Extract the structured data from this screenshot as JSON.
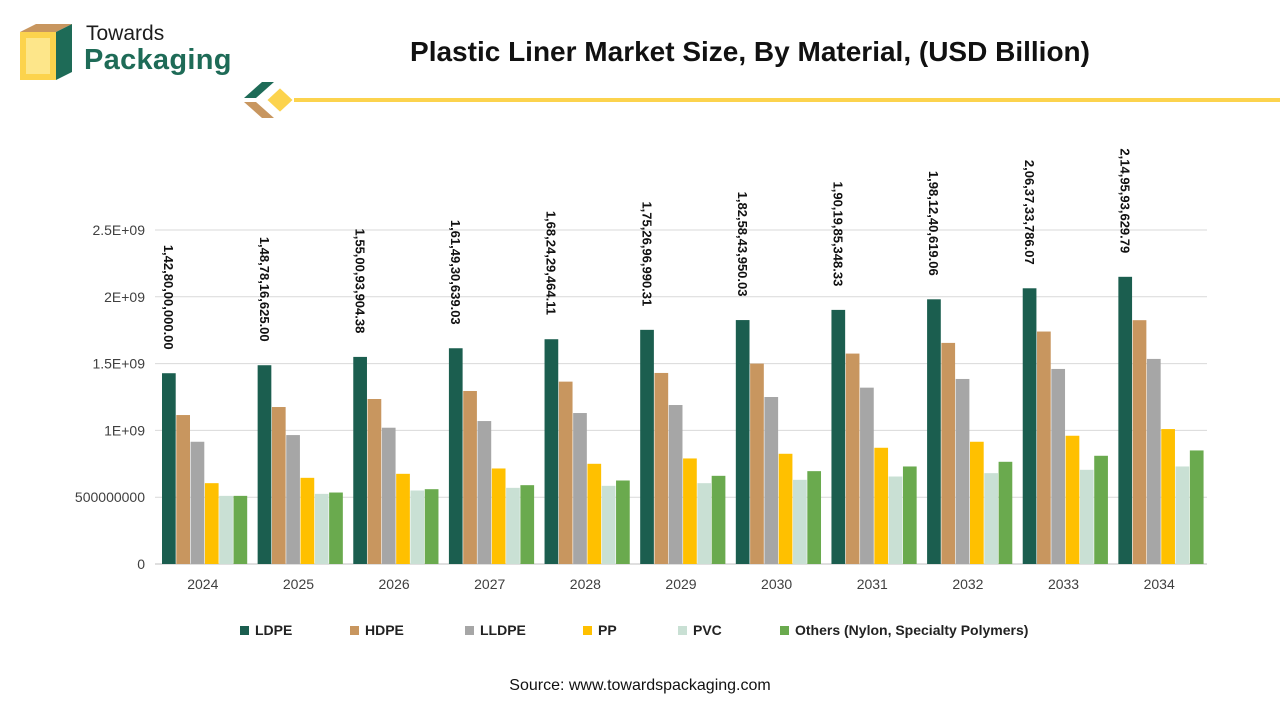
{
  "brand": {
    "line1": "Towards",
    "line2": "Packaging",
    "colors": {
      "green": "#1e6b57",
      "tan": "#c8965f",
      "yellow": "#fcd34d"
    }
  },
  "source": "Source: www.towardspackaging.com",
  "chart_data": {
    "type": "bar",
    "title": "Plastic Liner Market Size, By Material, (USD Billion)",
    "categories": [
      "2024",
      "2025",
      "2026",
      "2027",
      "2028",
      "2029",
      "2030",
      "2031",
      "2032",
      "2033",
      "2034"
    ],
    "ylim": [
      0,
      2500000000
    ],
    "yticks": [
      0,
      500000000,
      1000000000,
      1500000000,
      2000000000,
      2500000000
    ],
    "ytick_labels": [
      "0",
      "500000000",
      "1E+09",
      "1.5E+09",
      "2E+09",
      "2.5E+09"
    ],
    "grid": true,
    "legend_position": "bottom",
    "series": [
      {
        "name": "LDPE",
        "color": "#1b5e4f",
        "values": [
          1428000000,
          1487816625,
          1550093904.38,
          1614930639.03,
          1682429464.11,
          1752696990.31,
          1825843950.03,
          1901985348.33,
          1981240619.06,
          2063733786.07,
          2149593629.79
        ],
        "labels": [
          "1,42,80,00,000.00",
          "1,48,78,16,625.00",
          "1,55,00,93,904.38",
          "1,61,49,30,639.03",
          "1,68,24,29,464.11",
          "1,75,26,96,990.31",
          "1,82,58,43,950.03",
          "1,90,19,85,348.33",
          "1,98,12,40,619.06",
          "2,06,37,33,786.07",
          "2,14,95,93,629.79"
        ]
      },
      {
        "name": "HDPE",
        "color": "#c8965f",
        "values": [
          1115000000,
          1175000000,
          1235000000,
          1295000000,
          1365000000,
          1430000000,
          1500000000,
          1575000000,
          1655000000,
          1740000000,
          1825000000
        ]
      },
      {
        "name": "LLDPE",
        "color": "#a6a6a6",
        "values": [
          915000000,
          965000000,
          1020000000,
          1070000000,
          1130000000,
          1190000000,
          1250000000,
          1320000000,
          1385000000,
          1460000000,
          1535000000
        ]
      },
      {
        "name": "PP",
        "color": "#ffc000",
        "values": [
          605000000,
          645000000,
          675000000,
          715000000,
          750000000,
          790000000,
          825000000,
          870000000,
          915000000,
          960000000,
          1010000000
        ]
      },
      {
        "name": "PVC",
        "color": "#c9e0d4",
        "values": [
          510000000,
          525000000,
          550000000,
          570000000,
          585000000,
          605000000,
          630000000,
          655000000,
          680000000,
          705000000,
          730000000
        ]
      },
      {
        "name": "Others (Nylon, Specialty Polymers)",
        "color": "#6aaa4e",
        "values": [
          510000000,
          535000000,
          560000000,
          590000000,
          625000000,
          660000000,
          695000000,
          730000000,
          765000000,
          810000000,
          850000000
        ]
      }
    ]
  }
}
